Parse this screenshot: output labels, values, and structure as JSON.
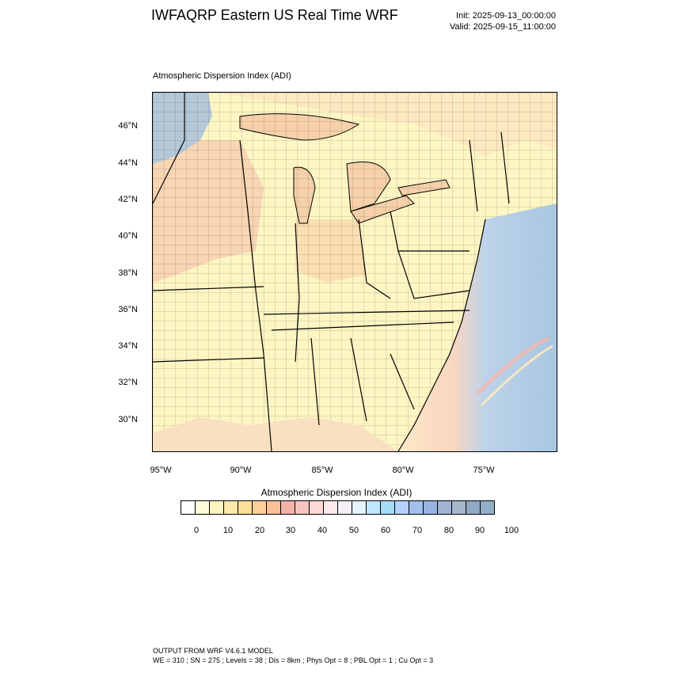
{
  "header": {
    "title": "IWFAQRP Eastern US Real Time WRF",
    "init": "Init: 2025-09-13_00:00:00",
    "valid": "Valid: 2025-09-15_11:00:00"
  },
  "map": {
    "field_label": "Atmospheric Dispersion Index   (ADI)",
    "lat_labels": [
      "46°N",
      "44°N",
      "42°N",
      "40°N",
      "38°N",
      "36°N",
      "34°N",
      "32°N",
      "30°N"
    ],
    "lon_labels": [
      "95°W",
      "90°W",
      "85°W",
      "80°W",
      "75°W"
    ],
    "colors": {
      "land_base": "#fdf6c3",
      "ocean": "#a9c6e0",
      "warm": "#f5c8a0",
      "pink": "#f2b8b0",
      "blue": "#a8bfdc"
    }
  },
  "colorbar": {
    "title": "Atmospheric Dispersion Index  (ADI)",
    "colors": [
      "#ffffff",
      "#fffbd8",
      "#fff3bf",
      "#ffe9a8",
      "#ffe09a",
      "#ffcf9a",
      "#fac09a",
      "#f6b2a8",
      "#f7c5c0",
      "#fbd9d6",
      "#fde9ea",
      "#f6f0f6",
      "#e6f2ff",
      "#bfe8ff",
      "#a7dcf8",
      "#b5d2ff",
      "#a3c0ec",
      "#98b4e2",
      "#a2b4d2",
      "#a6b8cc",
      "#8fa9c6",
      "#93aec9"
    ],
    "labels": [
      "0",
      "10",
      "20",
      "30",
      "40",
      "50",
      "60",
      "70",
      "80",
      "90",
      "100"
    ]
  },
  "footer": {
    "line1": "OUTPUT FROM WRF V4.6.1 MODEL",
    "line2": "WE = 310 ; SN = 275 ; Levels = 38 ; Dis = 8km ; Phys Opt = 8 ; PBL Opt = 1 ; Cu Opt = 3"
  }
}
